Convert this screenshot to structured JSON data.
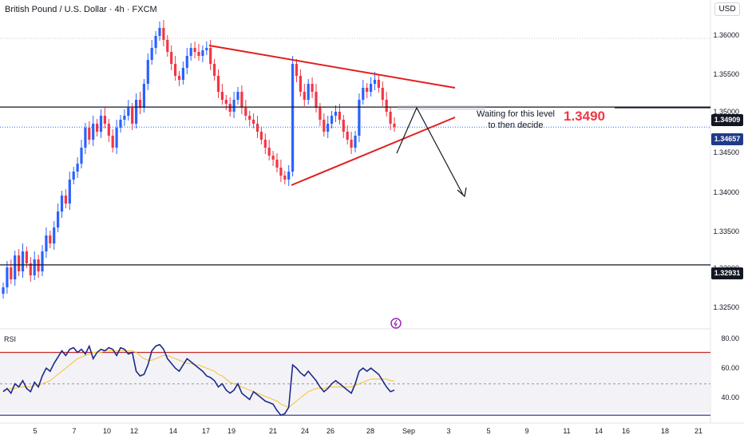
{
  "header": {
    "symbol_title": "British Pound / U.S. Dollar · 4h · FXCM",
    "currency": "USD"
  },
  "indicator": {
    "label": "RSI"
  },
  "annotations": {
    "wait_line1": "Waiting for this level",
    "wait_line2": "to then decide",
    "level_text": "1.3490"
  },
  "price_axis": {
    "ticks": [
      "1.36000",
      "1.35500",
      "1.35000",
      "1.34500",
      "1.34000",
      "1.33500",
      "1.33000",
      "1.32500"
    ],
    "badges": [
      {
        "label": "1.34909",
        "color": "#131722"
      },
      {
        "label": "1.34657",
        "color": "#1e3a8a"
      },
      {
        "label": "1.32931",
        "color": "#131722"
      }
    ]
  },
  "rsi_axis": {
    "ticks": [
      "80.00",
      "60.00",
      "40.00"
    ]
  },
  "x_axis": {
    "ticks": [
      "5",
      "7",
      "10",
      "12",
      "14",
      "17",
      "19",
      "21",
      "24",
      "26",
      "28",
      "Sep",
      "3",
      "5",
      "9",
      "11",
      "14",
      "16",
      "18",
      "21"
    ]
  },
  "colors": {
    "up": "#2962ff",
    "down": "#f23645",
    "trendline": "#e0201f",
    "rsi_line": "#1e2a8a",
    "rsi_ma": "#f5c542"
  },
  "chart_data": [
    {
      "type": "candlestick",
      "title": "British Pound / U.S. Dollar · 4h · FXCM",
      "y_range": [
        1.3215,
        1.3615
      ],
      "horizontal_levels": [
        1.34909,
        1.32931
      ],
      "last_price": 1.34657,
      "target_level": 1.349,
      "trendlines": [
        {
          "name": "upper",
          "from": [
            17,
            1.3568
          ],
          "to": [
            30,
            1.3515
          ]
        },
        {
          "name": "lower",
          "from": [
            22,
            1.3393
          ],
          "to": [
            30,
            1.3478
          ]
        }
      ],
      "closes": [
        1.3265,
        1.329,
        1.3275,
        1.3305,
        1.3285,
        1.331,
        1.3295,
        1.328,
        1.33,
        1.3285,
        1.331,
        1.333,
        1.332,
        1.334,
        1.336,
        1.338,
        1.337,
        1.34,
        1.341,
        1.342,
        1.344,
        1.3465,
        1.345,
        1.347,
        1.346,
        1.348,
        1.347,
        1.3455,
        1.344,
        1.3465,
        1.3475,
        1.348,
        1.349,
        1.347,
        1.35,
        1.349,
        1.352,
        1.355,
        1.3565,
        1.358,
        1.359,
        1.3575,
        1.356,
        1.3545,
        1.353,
        1.3525,
        1.354,
        1.3555,
        1.3565,
        1.356,
        1.3555,
        1.3562,
        1.3565,
        1.3545,
        1.353,
        1.351,
        1.35,
        1.3495,
        1.3485,
        1.35,
        1.351,
        1.349,
        1.348,
        1.3475,
        1.347,
        1.346,
        1.345,
        1.344,
        1.343,
        1.3425,
        1.3415,
        1.3405,
        1.34,
        1.341,
        1.3545,
        1.353,
        1.351,
        1.35,
        1.352,
        1.351,
        1.349,
        1.3475,
        1.346,
        1.347,
        1.348,
        1.3485,
        1.3475,
        1.346,
        1.345,
        1.344,
        1.3455,
        1.35,
        1.3515,
        1.351,
        1.352,
        1.3525,
        1.3515,
        1.35,
        1.3485,
        1.347,
        1.3466
      ],
      "last_close": 1.34657
    },
    {
      "type": "line",
      "title": "RSI",
      "y_range": [
        25,
        85
      ],
      "levels": [
        70,
        30
      ],
      "series": [
        {
          "values": [
            45,
            47,
            44,
            50,
            48,
            52,
            47,
            45,
            51,
            48,
            55,
            60,
            58,
            63,
            67,
            71,
            68,
            72,
            73,
            70,
            72,
            69,
            74,
            66,
            70,
            72,
            71,
            73,
            72,
            68,
            73,
            72,
            69,
            70,
            58,
            55,
            56,
            62,
            71,
            74,
            75,
            72,
            66,
            63,
            60,
            58,
            62,
            66,
            64,
            62,
            60,
            58,
            55,
            54,
            52,
            48,
            50,
            46,
            44,
            46,
            50,
            44,
            42,
            40,
            45,
            43,
            41,
            39,
            38,
            37,
            33,
            30,
            31,
            35,
            62,
            60,
            57,
            55,
            58,
            55,
            52,
            48,
            45,
            47,
            50,
            52,
            50,
            48,
            46,
            44,
            50,
            58,
            60,
            58,
            60,
            58,
            56,
            52,
            48,
            45,
            46
          ]
        },
        {
          "values": [
            46,
            46,
            47,
            47,
            48,
            48,
            48,
            48,
            49,
            49,
            50,
            51,
            52,
            54,
            56,
            58,
            60,
            62,
            64,
            66,
            67,
            68,
            69,
            70,
            70,
            70,
            71,
            71,
            71,
            71,
            71,
            71,
            71,
            71,
            70,
            68,
            66,
            65,
            65,
            66,
            67,
            68,
            68,
            67,
            66,
            65,
            64,
            63,
            63,
            62,
            62,
            61,
            60,
            59,
            58,
            56,
            55,
            53,
            51,
            50,
            49,
            48,
            47,
            46,
            45,
            44,
            43,
            42,
            41,
            40,
            39,
            37,
            36,
            35,
            37,
            39,
            41,
            43,
            45,
            46,
            47,
            47,
            47,
            48,
            48,
            48,
            48,
            48,
            48,
            48,
            49,
            50,
            51,
            52,
            53,
            53,
            53,
            53,
            53,
            52,
            52
          ]
        }
      ]
    }
  ]
}
